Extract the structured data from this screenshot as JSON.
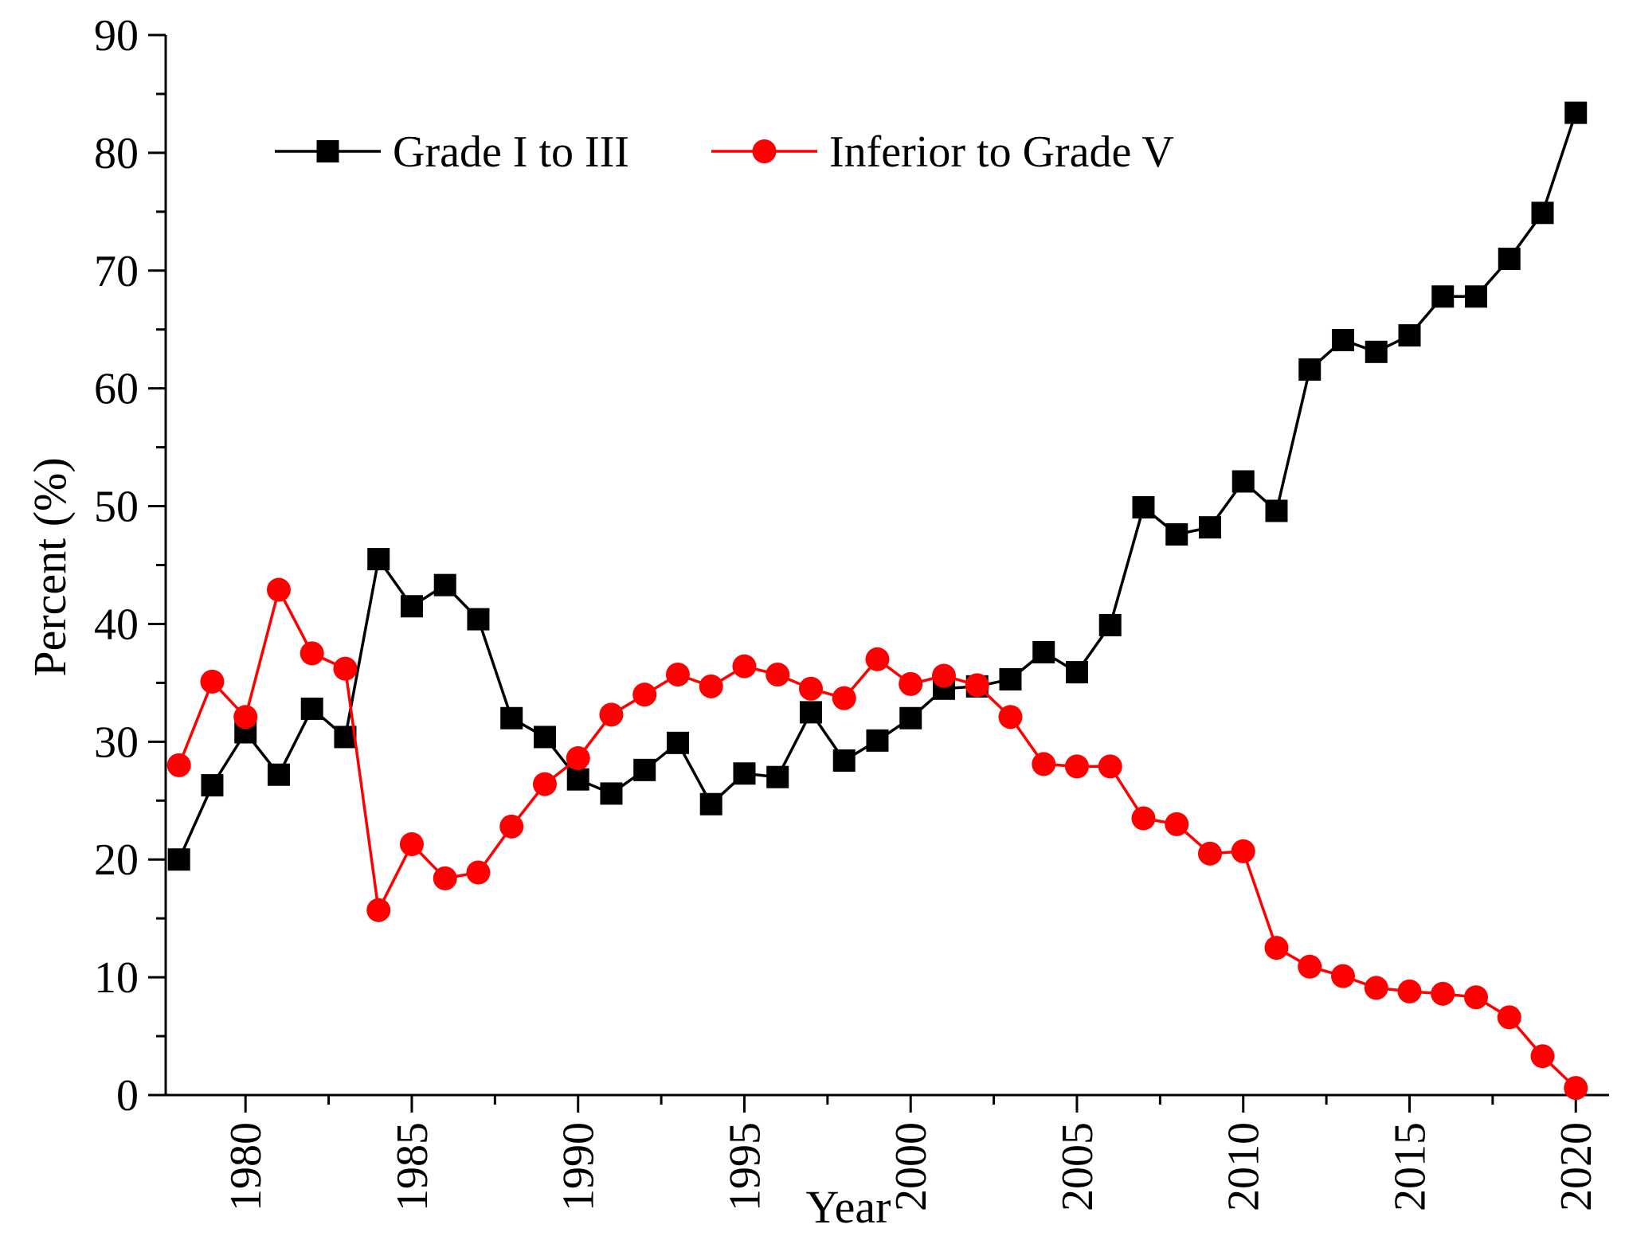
{
  "chart_data": {
    "type": "line",
    "title": "",
    "xlabel": "Year",
    "ylabel": "Percent (%)",
    "xlim": [
      1977.6,
      2021
    ],
    "ylim": [
      0,
      90
    ],
    "x_ticks": [
      "1980",
      "1985",
      "1990",
      "1995",
      "2000",
      "2005",
      "2010",
      "2015",
      "2020"
    ],
    "y_ticks": [
      "0",
      "10",
      "20",
      "30",
      "40",
      "50",
      "60",
      "70",
      "80",
      "90"
    ],
    "legend_position": "top-left",
    "grid": false,
    "x": [
      1978,
      1979,
      1980,
      1981,
      1982,
      1983,
      1984,
      1985,
      1986,
      1987,
      1988,
      1989,
      1990,
      1991,
      1992,
      1993,
      1994,
      1995,
      1996,
      1997,
      1998,
      1999,
      2000,
      2001,
      2002,
      2003,
      2004,
      2005,
      2006,
      2007,
      2008,
      2009,
      2010,
      2011,
      2012,
      2013,
      2014,
      2015,
      2016,
      2017,
      2018,
      2019,
      2020
    ],
    "series": [
      {
        "name": "Grade I to III",
        "color": "#000000",
        "marker": "square",
        "values": [
          20.0,
          26.3,
          30.8,
          27.2,
          32.8,
          30.4,
          45.5,
          41.5,
          43.3,
          40.4,
          32.0,
          30.4,
          26.8,
          25.6,
          27.6,
          29.9,
          24.7,
          27.3,
          27.0,
          32.5,
          28.4,
          30.1,
          32.0,
          34.5,
          34.7,
          35.3,
          37.6,
          35.9,
          39.9,
          49.9,
          47.6,
          48.2,
          52.1,
          49.6,
          61.6,
          64.1,
          63.1,
          64.5,
          67.8,
          67.8,
          71.0,
          74.9,
          83.4
        ]
      },
      {
        "name": "Inferior to Grade V",
        "color": "#ff0000",
        "marker": "circle",
        "values": [
          28.0,
          35.1,
          32.1,
          42.9,
          37.5,
          36.2,
          15.7,
          21.3,
          18.4,
          18.9,
          22.8,
          26.4,
          28.6,
          32.3,
          34.0,
          35.7,
          34.7,
          36.4,
          35.7,
          34.5,
          33.7,
          37.0,
          34.9,
          35.6,
          34.8,
          32.1,
          28.1,
          27.9,
          27.9,
          23.5,
          23.0,
          20.5,
          20.7,
          12.5,
          10.9,
          10.1,
          9.1,
          8.8,
          8.6,
          8.3,
          6.6,
          3.3,
          0.6
        ]
      }
    ]
  }
}
